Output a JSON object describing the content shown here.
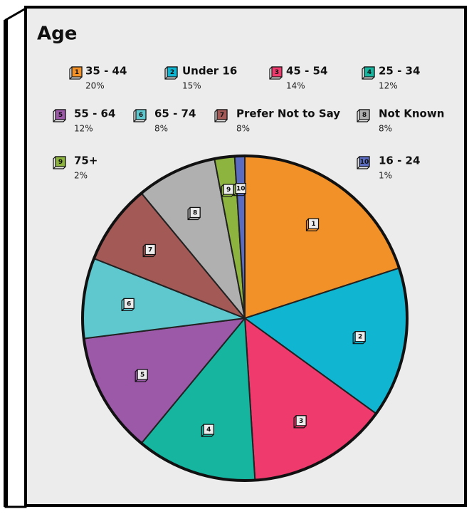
{
  "chart_data": {
    "type": "pie",
    "title": "Age",
    "categories": [
      "35 - 44",
      "Under 16",
      "45 - 54",
      "25 - 34",
      "55 - 64",
      "65 - 74",
      "Prefer Not to Say",
      "Not Known",
      "75+",
      "16 - 24"
    ],
    "ids": [
      1,
      2,
      3,
      4,
      5,
      6,
      7,
      8,
      9,
      10
    ],
    "values": [
      20,
      15,
      14,
      12,
      12,
      8,
      8,
      8,
      2,
      1
    ],
    "value_labels": [
      "20%",
      "15%",
      "14%",
      "12%",
      "12%",
      "8%",
      "8%",
      "8%",
      "2%",
      "1%"
    ],
    "colors": [
      "#f39129",
      "#10b5d1",
      "#ee3a6d",
      "#15b5a0",
      "#9b59a8",
      "#5fc8cf",
      "#a35a57",
      "#b0b0b0",
      "#8db43e",
      "#5b6cc0"
    ]
  }
}
